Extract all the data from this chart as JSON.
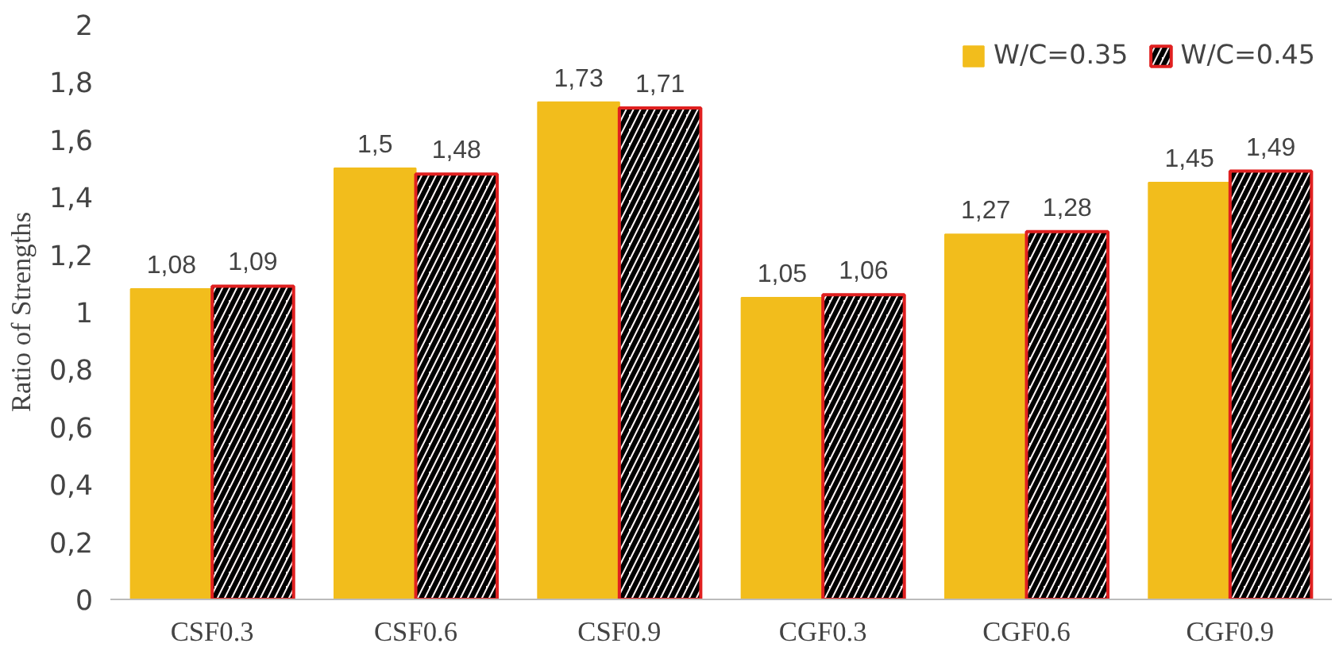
{
  "chart_data": {
    "type": "bar",
    "ylabel": "Ratio of Strengths",
    "categories": [
      "CSF0.3",
      "CSF0.6",
      "CSF0.9",
      "CGF0.3",
      "CGF0.6",
      "CGF0.9"
    ],
    "series": [
      {
        "name": "W/C=0.35",
        "color": "#f2bd1c",
        "values": [
          1.08,
          1.5,
          1.73,
          1.05,
          1.27,
          1.45
        ],
        "value_labels": [
          "1,08",
          "1,5",
          "1,73",
          "1,05",
          "1,27",
          "1,45"
        ]
      },
      {
        "name": "W/C=0.45",
        "color": "#e02020",
        "values": [
          1.09,
          1.48,
          1.71,
          1.06,
          1.28,
          1.49
        ],
        "value_labels": [
          "1,09",
          "1,48",
          "1,71",
          "1,06",
          "1,28",
          "1,49"
        ]
      }
    ],
    "ylim": [
      0,
      2
    ],
    "yticks": [
      0,
      {
        "value": 0.2,
        "label": "0,2"
      },
      {
        "value": 0.4,
        "label": "0,4"
      },
      {
        "value": 0.6,
        "label": "0,6"
      },
      {
        "value": 0.8,
        "label": "0,8"
      },
      1,
      {
        "value": 1.2,
        "label": "1,2"
      },
      {
        "value": 1.4,
        "label": "1,4"
      },
      {
        "value": 1.6,
        "label": "1,6"
      },
      {
        "value": 1.8,
        "label": "1,8"
      },
      2
    ],
    "grid": false,
    "legend": "top right"
  }
}
